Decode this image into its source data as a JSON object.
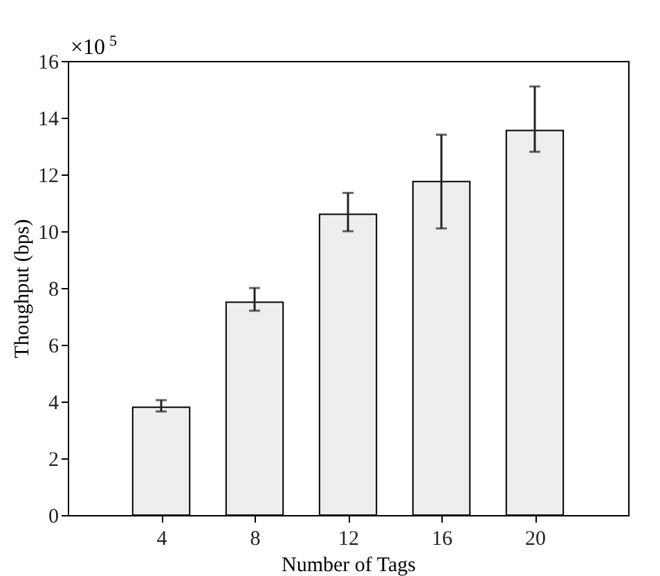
{
  "chart_data": {
    "type": "bar",
    "xlabel": "Number of Tags",
    "ylabel": "Thoughput (bps)",
    "x": [
      4,
      8,
      12,
      16,
      20
    ],
    "values": [
      3.8,
      7.5,
      10.6,
      11.75,
      13.55
    ],
    "errors": [
      [
        3.65,
        4.05
      ],
      [
        7.2,
        8.0
      ],
      [
        10.0,
        11.35
      ],
      [
        10.1,
        13.4
      ],
      [
        12.8,
        15.1
      ]
    ],
    "color": "#eeeeee",
    "xlim": [
      0,
      24
    ],
    "xticks": [
      4,
      8,
      12,
      16,
      20
    ],
    "ylim": [
      0,
      16
    ],
    "yticks": [
      0,
      2,
      4,
      6,
      8,
      10,
      12,
      14,
      16
    ],
    "annotations": [
      "×10$^{5}$"
    ],
    "grid": false
  }
}
